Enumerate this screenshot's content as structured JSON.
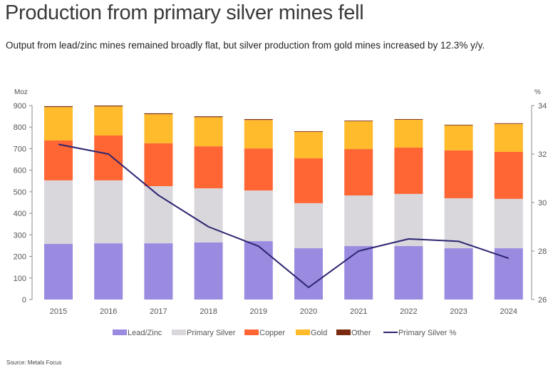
{
  "header": {
    "title": "Production from primary silver mines fell",
    "subtitle": "Output from lead/zinc mines remained broadly flat, but silver production from gold mines increased by 12.3% y/y."
  },
  "footer": {
    "source": "Source: Metals Focus"
  },
  "chart_data": {
    "type": "bar",
    "stacked": true,
    "title": "Production from primary silver mines fell",
    "categories": [
      "2015",
      "2016",
      "2017",
      "2018",
      "2019",
      "2020",
      "2021",
      "2022",
      "2023",
      "2024"
    ],
    "series": [
      {
        "name": "Lead/Zinc",
        "color": "#9A8AE0",
        "axis": "left",
        "values": [
          258,
          261,
          261,
          265,
          271,
          238,
          248,
          248,
          238,
          238
        ]
      },
      {
        "name": "Primary Silver",
        "color": "#D9D7DC",
        "axis": "left",
        "values": [
          295,
          292,
          265,
          251,
          235,
          209,
          235,
          242,
          232,
          229
        ]
      },
      {
        "name": "Copper",
        "color": "#FF6633",
        "axis": "left",
        "values": [
          185,
          208,
          199,
          195,
          195,
          208,
          215,
          215,
          222,
          218
        ]
      },
      {
        "name": "Gold",
        "color": "#FFBB2B",
        "axis": "left",
        "values": [
          155,
          135,
          135,
          135,
          132,
          123,
          129,
          129,
          116,
          130
        ]
      },
      {
        "name": "Other",
        "color": "#7A2A10",
        "axis": "left",
        "values": [
          4,
          4,
          4,
          4,
          4,
          3,
          3,
          3,
          3,
          3
        ]
      }
    ],
    "line_series": {
      "name": "Primary Silver %",
      "color": "#2B2470",
      "axis": "right",
      "values": [
        32.4,
        32.0,
        30.3,
        29.0,
        28.2,
        26.5,
        28.0,
        28.5,
        28.4,
        27.7
      ]
    },
    "left_axis": {
      "label": "Moz",
      "ylim": [
        0,
        900
      ],
      "ticks": [
        "0",
        "100",
        "200",
        "300",
        "400",
        "500",
        "600",
        "700",
        "800",
        "900"
      ]
    },
    "right_axis": {
      "label": "%",
      "ylim": [
        26,
        34
      ],
      "ticks": [
        "26",
        "28",
        "30",
        "32",
        "34"
      ]
    },
    "xlabel": "",
    "grid": false,
    "legend": {
      "position": "bottom",
      "items": [
        {
          "label": "Lead/Zinc",
          "type": "box",
          "color": "#9A8AE0"
        },
        {
          "label": "Primary Silver",
          "type": "box",
          "color": "#D9D7DC"
        },
        {
          "label": "Copper",
          "type": "box",
          "color": "#FF6633"
        },
        {
          "label": "Gold",
          "type": "box",
          "color": "#FFBB2B"
        },
        {
          "label": "Other",
          "type": "box",
          "color": "#7A2A10"
        },
        {
          "label": "Primary Silver %",
          "type": "line",
          "color": "#2B2470"
        }
      ]
    }
  }
}
